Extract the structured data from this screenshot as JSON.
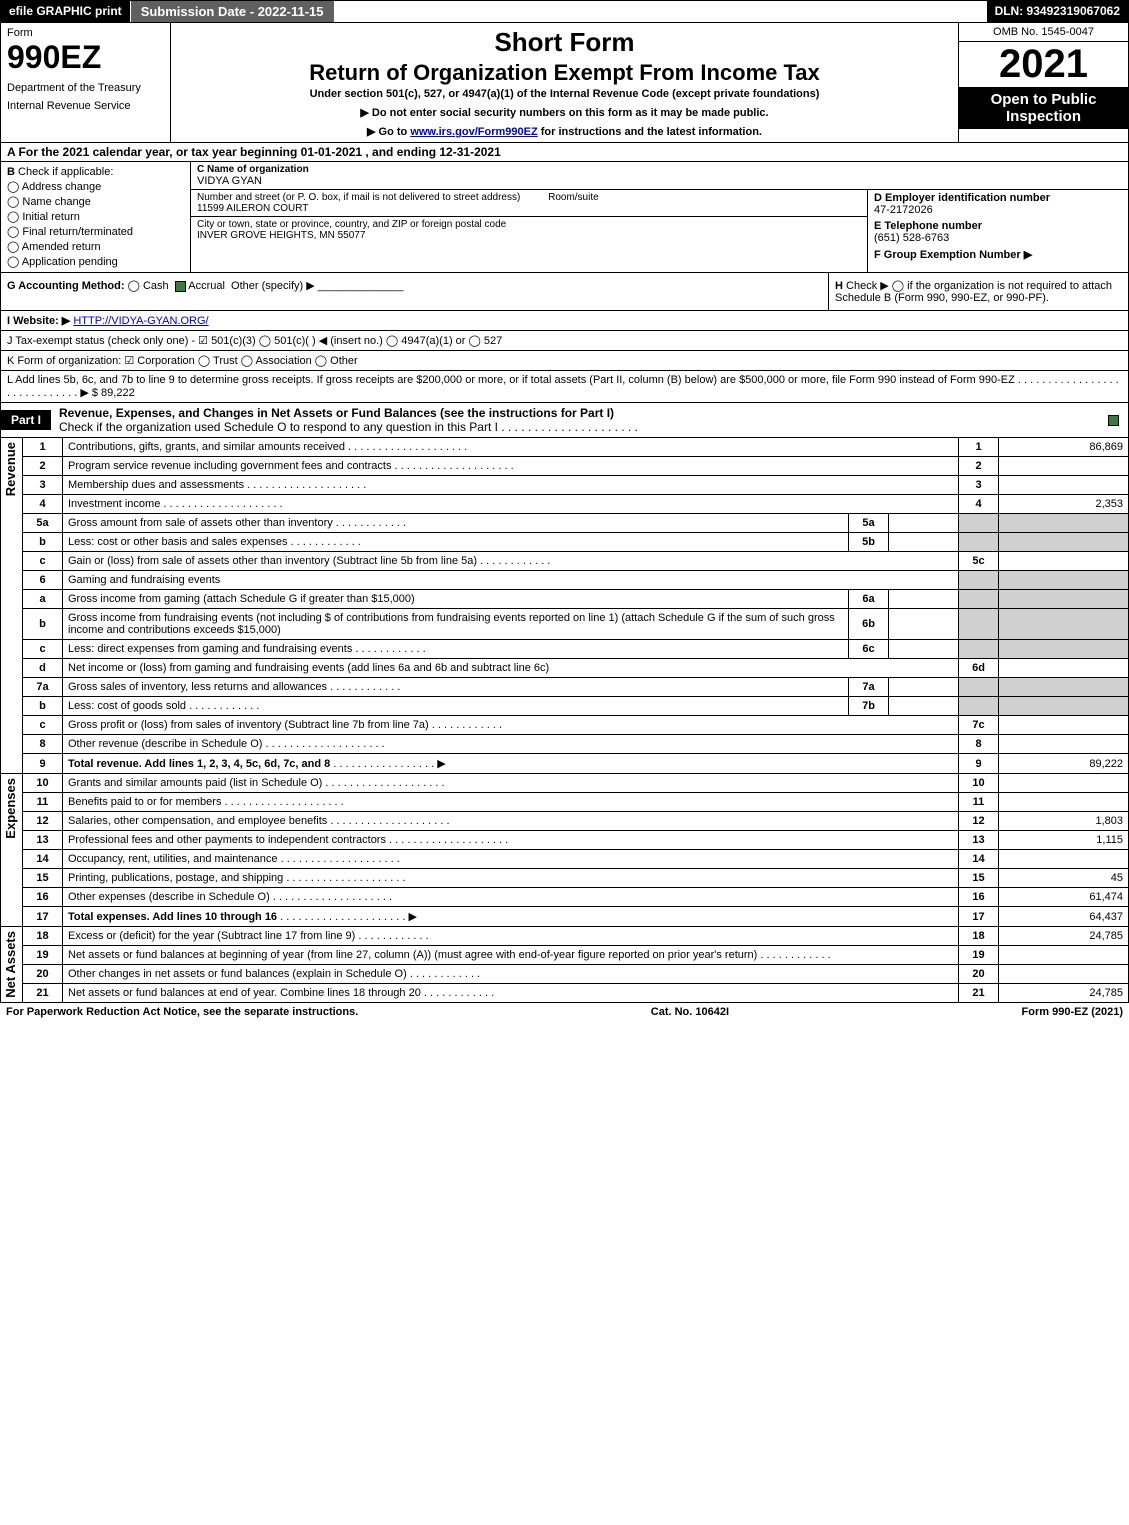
{
  "topbar": {
    "efile": "efile GRAPHIC print",
    "submission": "Submission Date - 2022-11-15",
    "dln": "DLN: 93492319067062"
  },
  "header": {
    "form_label": "Form",
    "form_no": "990EZ",
    "dept": "Department of the Treasury",
    "irs": "Internal Revenue Service",
    "short": "Short Form",
    "return": "Return of Organization Exempt From Income Tax",
    "under": "Under section 501(c), 527, or 4947(a)(1) of the Internal Revenue Code (except private foundations)",
    "note1": "▶ Do not enter social security numbers on this form as it may be made public.",
    "note2_pre": "▶ Go to ",
    "note2_link": "www.irs.gov/Form990EZ",
    "note2_post": " for instructions and the latest information.",
    "omb": "OMB No. 1545-0047",
    "year": "2021",
    "open": "Open to Public Inspection"
  },
  "rowA": "A  For the 2021 calendar year, or tax year beginning 01-01-2021 , and ending 12-31-2021",
  "B": {
    "title": "B",
    "check": "Check if applicable:",
    "opts": [
      "Address change",
      "Name change",
      "Initial return",
      "Final return/terminated",
      "Amended return",
      "Application pending"
    ]
  },
  "C": {
    "name_label": "C Name of organization",
    "name": "VIDYA GYAN",
    "street_label": "Number and street (or P. O. box, if mail is not delivered to street address)",
    "room_label": "Room/suite",
    "street": "11599 AILERON COURT",
    "city_label": "City or town, state or province, country, and ZIP or foreign postal code",
    "city": "INVER GROVE HEIGHTS, MN  55077"
  },
  "D": {
    "ein_label": "D Employer identification number",
    "ein": "47-2172026",
    "tel_label": "E Telephone number",
    "tel": "(651) 528-6763",
    "group_label": "F Group Exemption Number  ▶"
  },
  "G": {
    "label": "G Accounting Method:",
    "cash": "Cash",
    "accrual": "Accrual",
    "other": "Other (specify) ▶"
  },
  "H": {
    "label": "H",
    "text": "Check ▶ ◯ if the organization is not required to attach Schedule B (Form 990, 990-EZ, or 990-PF)."
  },
  "I": {
    "label": "I Website: ▶",
    "url": "HTTP://VIDYA-GYAN.ORG/"
  },
  "J": "J Tax-exempt status (check only one) - ☑ 501(c)(3) ◯ 501(c)(  ) ◀ (insert no.) ◯ 4947(a)(1) or ◯ 527",
  "K": "K Form of organization: ☑ Corporation  ◯ Trust  ◯ Association  ◯ Other",
  "L": {
    "text": "L Add lines 5b, 6c, and 7b to line 9 to determine gross receipts. If gross receipts are $200,000 or more, or if total assets (Part II, column (B) below) are $500,000 or more, file Form 990 instead of Form 990-EZ . . . . . . . . . . . . . . . . . . . . . . . . . . . . . ▶",
    "amt": "$ 89,222"
  },
  "part1": {
    "tab": "Part I",
    "title": "Revenue, Expenses, and Changes in Net Assets or Fund Balances (see the instructions for Part I)",
    "sub": "Check if the organization used Schedule O to respond to any question in this Part I . . . . . . . . . . . . . . . . . . . . ."
  },
  "sections": {
    "revenue": "Revenue",
    "expenses": "Expenses",
    "netassets": "Net Assets"
  },
  "lines": {
    "l1": {
      "n": "1",
      "t": "Contributions, gifts, grants, and similar amounts received",
      "a": "86,869"
    },
    "l2": {
      "n": "2",
      "t": "Program service revenue including government fees and contracts",
      "a": ""
    },
    "l3": {
      "n": "3",
      "t": "Membership dues and assessments",
      "a": ""
    },
    "l4": {
      "n": "4",
      "t": "Investment income",
      "a": "2,353"
    },
    "l5a": {
      "n": "5a",
      "t": "Gross amount from sale of assets other than inventory",
      "s": "5a"
    },
    "l5b": {
      "n": "b",
      "t": "Less: cost or other basis and sales expenses",
      "s": "5b"
    },
    "l5c": {
      "n": "c",
      "t": "Gain or (loss) from sale of assets other than inventory (Subtract line 5b from line 5a)",
      "num": "5c",
      "a": ""
    },
    "l6": {
      "n": "6",
      "t": "Gaming and fundraising events"
    },
    "l6a": {
      "n": "a",
      "t": "Gross income from gaming (attach Schedule G if greater than $15,000)",
      "s": "6a"
    },
    "l6b": {
      "n": "b",
      "t1": "Gross income from fundraising events (not including $",
      "t2": "of contributions from fundraising events reported on line 1) (attach Schedule G if the sum of such gross income and contributions exceeds $15,000)",
      "s": "6b"
    },
    "l6c": {
      "n": "c",
      "t": "Less: direct expenses from gaming and fundraising events",
      "s": "6c"
    },
    "l6d": {
      "n": "d",
      "t": "Net income or (loss) from gaming and fundraising events (add lines 6a and 6b and subtract line 6c)",
      "num": "6d",
      "a": ""
    },
    "l7a": {
      "n": "7a",
      "t": "Gross sales of inventory, less returns and allowances",
      "s": "7a"
    },
    "l7b": {
      "n": "b",
      "t": "Less: cost of goods sold",
      "s": "7b"
    },
    "l7c": {
      "n": "c",
      "t": "Gross profit or (loss) from sales of inventory (Subtract line 7b from line 7a)",
      "num": "7c",
      "a": ""
    },
    "l8": {
      "n": "8",
      "t": "Other revenue (describe in Schedule O)",
      "a": ""
    },
    "l9": {
      "n": "9",
      "t": "Total revenue. Add lines 1, 2, 3, 4, 5c, 6d, 7c, and 8",
      "a": "89,222"
    },
    "l10": {
      "n": "10",
      "t": "Grants and similar amounts paid (list in Schedule O)",
      "a": ""
    },
    "l11": {
      "n": "11",
      "t": "Benefits paid to or for members",
      "a": ""
    },
    "l12": {
      "n": "12",
      "t": "Salaries, other compensation, and employee benefits",
      "a": "1,803"
    },
    "l13": {
      "n": "13",
      "t": "Professional fees and other payments to independent contractors",
      "a": "1,115"
    },
    "l14": {
      "n": "14",
      "t": "Occupancy, rent, utilities, and maintenance",
      "a": ""
    },
    "l15": {
      "n": "15",
      "t": "Printing, publications, postage, and shipping",
      "a": "45"
    },
    "l16": {
      "n": "16",
      "t": "Other expenses (describe in Schedule O)",
      "a": "61,474"
    },
    "l17": {
      "n": "17",
      "t": "Total expenses. Add lines 10 through 16",
      "a": "64,437"
    },
    "l18": {
      "n": "18",
      "t": "Excess or (deficit) for the year (Subtract line 17 from line 9)",
      "a": "24,785"
    },
    "l19": {
      "n": "19",
      "t": "Net assets or fund balances at beginning of year (from line 27, column (A)) (must agree with end-of-year figure reported on prior year's return)",
      "a": ""
    },
    "l20": {
      "n": "20",
      "t": "Other changes in net assets or fund balances (explain in Schedule O)",
      "a": ""
    },
    "l21": {
      "n": "21",
      "t": "Net assets or fund balances at end of year. Combine lines 18 through 20",
      "a": "24,785"
    }
  },
  "footer": {
    "left": "For Paperwork Reduction Act Notice, see the separate instructions.",
    "mid": "Cat. No. 10642I",
    "right": "Form 990-EZ (2021)"
  },
  "colors": {
    "black": "#000000",
    "white": "#ffffff",
    "gray_btn": "#606060",
    "shade": "#d0d0d0",
    "link": "#0000cc",
    "check_green": "#3a7a3a"
  }
}
